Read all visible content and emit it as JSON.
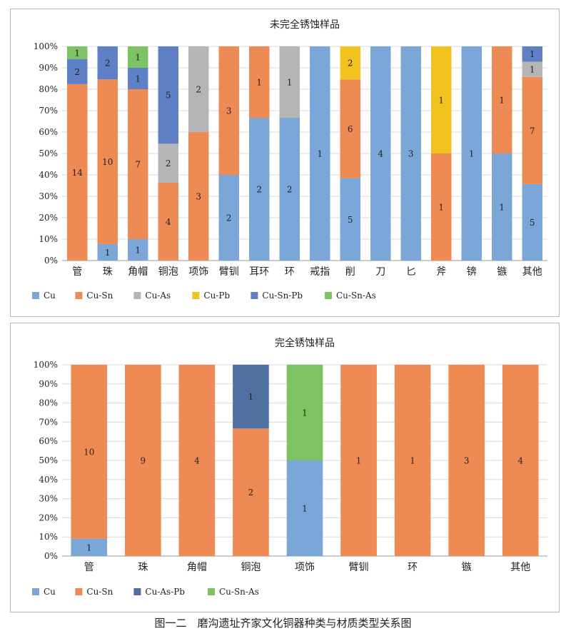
{
  "caption": "图一二　磨沟遗址齐家文化铜器种类与材质类型关系图",
  "colors": {
    "Cu": "#7ba7d8",
    "Cu-Sn": "#ee8a54",
    "Cu-As": "#b5b5b5",
    "Cu-Pb": "#f2c21f",
    "Cu-Sn-Pb": "#5f7fc6",
    "Cu-Sn-As": "#7ec363",
    "Cu-As-Pb": "#4f6f9e"
  },
  "chart_data": [
    {
      "type": "bar",
      "stacked": true,
      "normalized": true,
      "title": "未完全锈蚀样品",
      "categories": [
        "管",
        "珠",
        "角帽",
        "铜泡",
        "项饰",
        "臂钏",
        "耳环",
        "环",
        "戒指",
        "削",
        "刀",
        "匕",
        "斧",
        "锛",
        "镞",
        "其他"
      ],
      "y_ticks": [
        "0%",
        "10%",
        "20%",
        "30%",
        "40%",
        "50%",
        "60%",
        "70%",
        "80%",
        "90%",
        "100%"
      ],
      "ylim": [
        0,
        100
      ],
      "grid": true,
      "legend_position": "bottom",
      "series": [
        {
          "name": "Cu",
          "values": [
            0,
            1,
            1,
            0,
            0,
            2,
            2,
            2,
            1,
            5,
            4,
            3,
            0,
            1,
            1,
            5
          ]
        },
        {
          "name": "Cu-Sn",
          "values": [
            14,
            10,
            7,
            4,
            3,
            3,
            1,
            0,
            0,
            6,
            0,
            0,
            1,
            0,
            1,
            7
          ]
        },
        {
          "name": "Cu-As",
          "values": [
            0,
            0,
            0,
            2,
            2,
            0,
            0,
            1,
            0,
            0,
            0,
            0,
            0,
            0,
            0,
            1
          ]
        },
        {
          "name": "Cu-Pb",
          "values": [
            0,
            0,
            0,
            0,
            0,
            0,
            0,
            0,
            0,
            2,
            0,
            0,
            1,
            0,
            0,
            0
          ]
        },
        {
          "name": "Cu-Sn-Pb",
          "values": [
            2,
            2,
            1,
            5,
            0,
            0,
            0,
            0,
            0,
            0,
            0,
            0,
            0,
            0,
            0,
            1
          ]
        },
        {
          "name": "Cu-Sn-As",
          "values": [
            1,
            0,
            1,
            0,
            0,
            0,
            0,
            0,
            0,
            0,
            0,
            0,
            0,
            0,
            0,
            0
          ]
        }
      ]
    },
    {
      "type": "bar",
      "stacked": true,
      "normalized": true,
      "title": "完全锈蚀样品",
      "categories": [
        "管",
        "珠",
        "角帽",
        "铜泡",
        "项饰",
        "臂钏",
        "环",
        "镞",
        "其他"
      ],
      "y_ticks": [
        "0%",
        "10%",
        "20%",
        "30%",
        "40%",
        "50%",
        "60%",
        "70%",
        "80%",
        "90%",
        "100%"
      ],
      "ylim": [
        0,
        100
      ],
      "grid": true,
      "legend_position": "bottom",
      "series": [
        {
          "name": "Cu",
          "values": [
            1,
            0,
            0,
            0,
            1,
            0,
            0,
            0,
            0
          ]
        },
        {
          "name": "Cu-Sn",
          "values": [
            10,
            9,
            4,
            2,
            0,
            1,
            1,
            3,
            4
          ]
        },
        {
          "name": "Cu-As-Pb",
          "values": [
            0,
            0,
            0,
            1,
            0,
            0,
            0,
            0,
            0
          ]
        },
        {
          "name": "Cu-Sn-As",
          "values": [
            0,
            0,
            0,
            0,
            1,
            0,
            0,
            0,
            0
          ]
        }
      ]
    }
  ]
}
